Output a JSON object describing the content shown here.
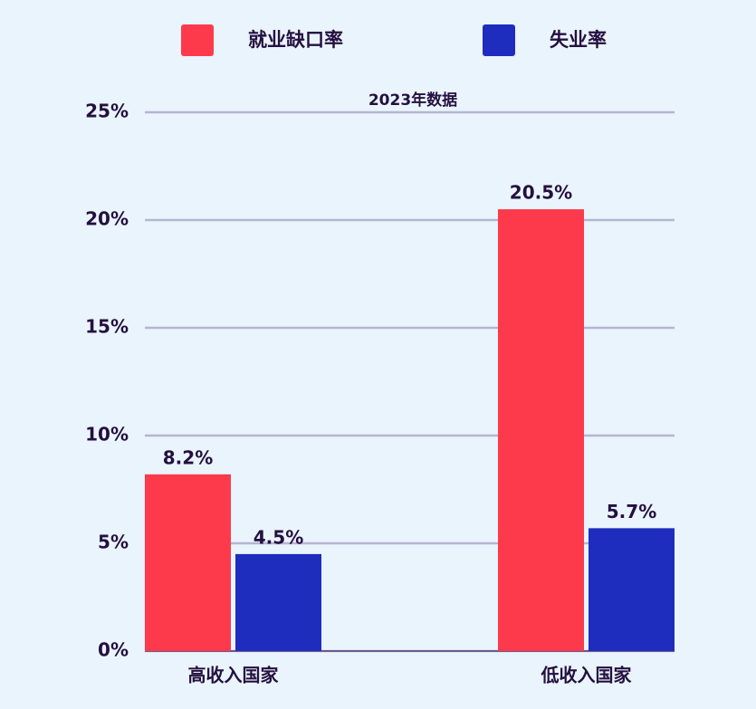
{
  "chart_data": {
    "type": "bar",
    "subtitle": "2023年数据",
    "categories": [
      "高收入国家",
      "低收入国家"
    ],
    "series": [
      {
        "name": "就业缺口率",
        "color": "#fc3a4c",
        "values": [
          8.2,
          20.5
        ],
        "value_labels": [
          "8.2%",
          "20.5%"
        ]
      },
      {
        "name": "失业率",
        "color": "#1f2dbf",
        "values": [
          4.5,
          5.7
        ],
        "value_labels": [
          "4.5%",
          "5.7%"
        ]
      }
    ],
    "ylim": [
      0,
      25
    ],
    "yticks": [
      {
        "value": 0,
        "label": "0%"
      },
      {
        "value": 5,
        "label": "5%"
      },
      {
        "value": 10,
        "label": "10%"
      },
      {
        "value": 15,
        "label": "15%"
      },
      {
        "value": 20,
        "label": "20%"
      },
      {
        "value": 25,
        "label": "25%"
      }
    ],
    "grid": true
  }
}
